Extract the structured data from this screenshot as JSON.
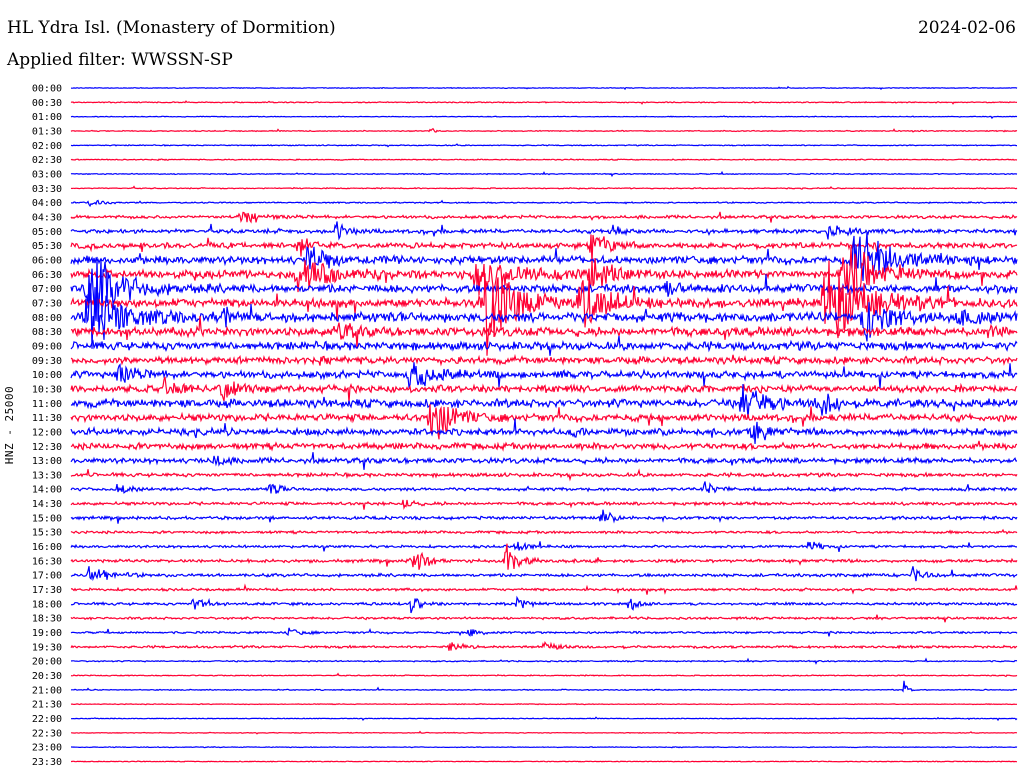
{
  "header": {
    "station": "HL Ydra Isl. (Monastery of Dormition)",
    "date": "2024-02-06",
    "filter_label": "Applied filter: WWSSN-SP"
  },
  "chart_data": {
    "type": "line",
    "channel_label": "HNZ - 25000",
    "colors": [
      "#0000ff",
      "#ff0033"
    ],
    "row_labels": [
      "00:00",
      "00:30",
      "01:00",
      "01:30",
      "02:00",
      "02:30",
      "03:00",
      "03:30",
      "04:00",
      "04:30",
      "05:00",
      "05:30",
      "06:00",
      "06:30",
      "07:00",
      "07:30",
      "08:00",
      "08:30",
      "09:00",
      "09:30",
      "10:00",
      "10:30",
      "11:00",
      "11:30",
      "12:00",
      "12:30",
      "13:00",
      "13:30",
      "14:00",
      "14:30",
      "15:00",
      "15:30",
      "16:00",
      "16:30",
      "17:00",
      "17:30",
      "18:00",
      "18:30",
      "19:00",
      "19:30",
      "20:00",
      "20:30",
      "21:00",
      "21:30",
      "22:00",
      "22:30",
      "23:00",
      "23:30"
    ],
    "noise_level": [
      0.3,
      0.4,
      0.3,
      0.4,
      0.4,
      0.4,
      0.4,
      0.4,
      0.5,
      1.2,
      1.6,
      2.2,
      3.0,
      3.2,
      3.2,
      3.4,
      3.8,
      3.4,
      3.2,
      2.8,
      2.8,
      2.8,
      3.2,
      2.8,
      2.6,
      2.4,
      2.0,
      1.4,
      1.2,
      1.2,
      1.2,
      1.0,
      1.0,
      1.2,
      1.2,
      1.0,
      1.0,
      0.9,
      0.8,
      0.9,
      0.5,
      0.4,
      0.4,
      0.3,
      0.3,
      0.3,
      0.3,
      0.3
    ],
    "events": [
      {
        "row": 3,
        "x": 0.38,
        "amp": 4,
        "dur": 0.004
      },
      {
        "row": 8,
        "x": 0.02,
        "amp": 3,
        "dur": 0.01
      },
      {
        "row": 9,
        "x": 0.18,
        "amp": 5,
        "dur": 0.02
      },
      {
        "row": 10,
        "x": 0.28,
        "amp": 10,
        "dur": 0.01
      },
      {
        "row": 10,
        "x": 0.57,
        "amp": 6,
        "dur": 0.01
      },
      {
        "row": 10,
        "x": 0.8,
        "amp": 6,
        "dur": 0.015
      },
      {
        "row": 11,
        "x": 0.24,
        "amp": 10,
        "dur": 0.01
      },
      {
        "row": 11,
        "x": 0.55,
        "amp": 14,
        "dur": 0.015
      },
      {
        "row": 12,
        "x": 0.25,
        "amp": 12,
        "dur": 0.02
      },
      {
        "row": 12,
        "x": 0.83,
        "amp": 30,
        "dur": 0.03
      },
      {
        "row": 13,
        "x": 0.24,
        "amp": 20,
        "dur": 0.025
      },
      {
        "row": 13,
        "x": 0.43,
        "amp": 20,
        "dur": 0.03
      },
      {
        "row": 13,
        "x": 0.55,
        "amp": 16,
        "dur": 0.02
      },
      {
        "row": 13,
        "x": 0.82,
        "amp": 30,
        "dur": 0.03
      },
      {
        "row": 14,
        "x": 0.02,
        "amp": 30,
        "dur": 0.03
      },
      {
        "row": 14,
        "x": 0.63,
        "amp": 8,
        "dur": 0.01
      },
      {
        "row": 15,
        "x": 0.44,
        "amp": 40,
        "dur": 0.03
      },
      {
        "row": 15,
        "x": 0.54,
        "amp": 26,
        "dur": 0.025
      },
      {
        "row": 15,
        "x": 0.8,
        "amp": 36,
        "dur": 0.04
      },
      {
        "row": 16,
        "x": 0.02,
        "amp": 28,
        "dur": 0.03
      },
      {
        "row": 16,
        "x": 0.16,
        "amp": 12,
        "dur": 0.01
      },
      {
        "row": 16,
        "x": 0.84,
        "amp": 18,
        "dur": 0.03
      },
      {
        "row": 16,
        "x": 0.94,
        "amp": 10,
        "dur": 0.015
      },
      {
        "row": 17,
        "x": 0.28,
        "amp": 8,
        "dur": 0.015
      },
      {
        "row": 17,
        "x": 0.97,
        "amp": 8,
        "dur": 0.01
      },
      {
        "row": 20,
        "x": 0.05,
        "amp": 10,
        "dur": 0.015
      },
      {
        "row": 20,
        "x": 0.36,
        "amp": 16,
        "dur": 0.02
      },
      {
        "row": 21,
        "x": 0.1,
        "amp": 10,
        "dur": 0.015
      },
      {
        "row": 21,
        "x": 0.16,
        "amp": 14,
        "dur": 0.012
      },
      {
        "row": 22,
        "x": 0.71,
        "amp": 20,
        "dur": 0.02
      },
      {
        "row": 22,
        "x": 0.79,
        "amp": 12,
        "dur": 0.012
      },
      {
        "row": 23,
        "x": 0.38,
        "amp": 24,
        "dur": 0.02
      },
      {
        "row": 24,
        "x": 0.72,
        "amp": 12,
        "dur": 0.01
      },
      {
        "row": 24,
        "x": 0.53,
        "amp": 6,
        "dur": 0.006
      },
      {
        "row": 26,
        "x": 0.15,
        "amp": 6,
        "dur": 0.01
      },
      {
        "row": 28,
        "x": 0.05,
        "amp": 7,
        "dur": 0.01
      },
      {
        "row": 28,
        "x": 0.21,
        "amp": 6,
        "dur": 0.01
      },
      {
        "row": 28,
        "x": 0.67,
        "amp": 6,
        "dur": 0.01
      },
      {
        "row": 29,
        "x": 0.35,
        "amp": 6,
        "dur": 0.01
      },
      {
        "row": 30,
        "x": 0.56,
        "amp": 7,
        "dur": 0.01
      },
      {
        "row": 32,
        "x": 0.47,
        "amp": 6,
        "dur": 0.01
      },
      {
        "row": 32,
        "x": 0.78,
        "amp": 7,
        "dur": 0.01
      },
      {
        "row": 33,
        "x": 0.36,
        "amp": 12,
        "dur": 0.012
      },
      {
        "row": 33,
        "x": 0.46,
        "amp": 14,
        "dur": 0.012
      },
      {
        "row": 34,
        "x": 0.02,
        "amp": 12,
        "dur": 0.015
      },
      {
        "row": 34,
        "x": 0.89,
        "amp": 7,
        "dur": 0.01
      },
      {
        "row": 36,
        "x": 0.13,
        "amp": 8,
        "dur": 0.012
      },
      {
        "row": 36,
        "x": 0.36,
        "amp": 10,
        "dur": 0.008
      },
      {
        "row": 36,
        "x": 0.47,
        "amp": 6,
        "dur": 0.01
      },
      {
        "row": 36,
        "x": 0.59,
        "amp": 6,
        "dur": 0.008
      },
      {
        "row": 38,
        "x": 0.23,
        "amp": 5,
        "dur": 0.01
      },
      {
        "row": 38,
        "x": 0.42,
        "amp": 5,
        "dur": 0.008
      },
      {
        "row": 39,
        "x": 0.4,
        "amp": 6,
        "dur": 0.01
      },
      {
        "row": 39,
        "x": 0.5,
        "amp": 6,
        "dur": 0.01
      },
      {
        "row": 42,
        "x": 0.88,
        "amp": 12,
        "dur": 0.003
      }
    ]
  }
}
